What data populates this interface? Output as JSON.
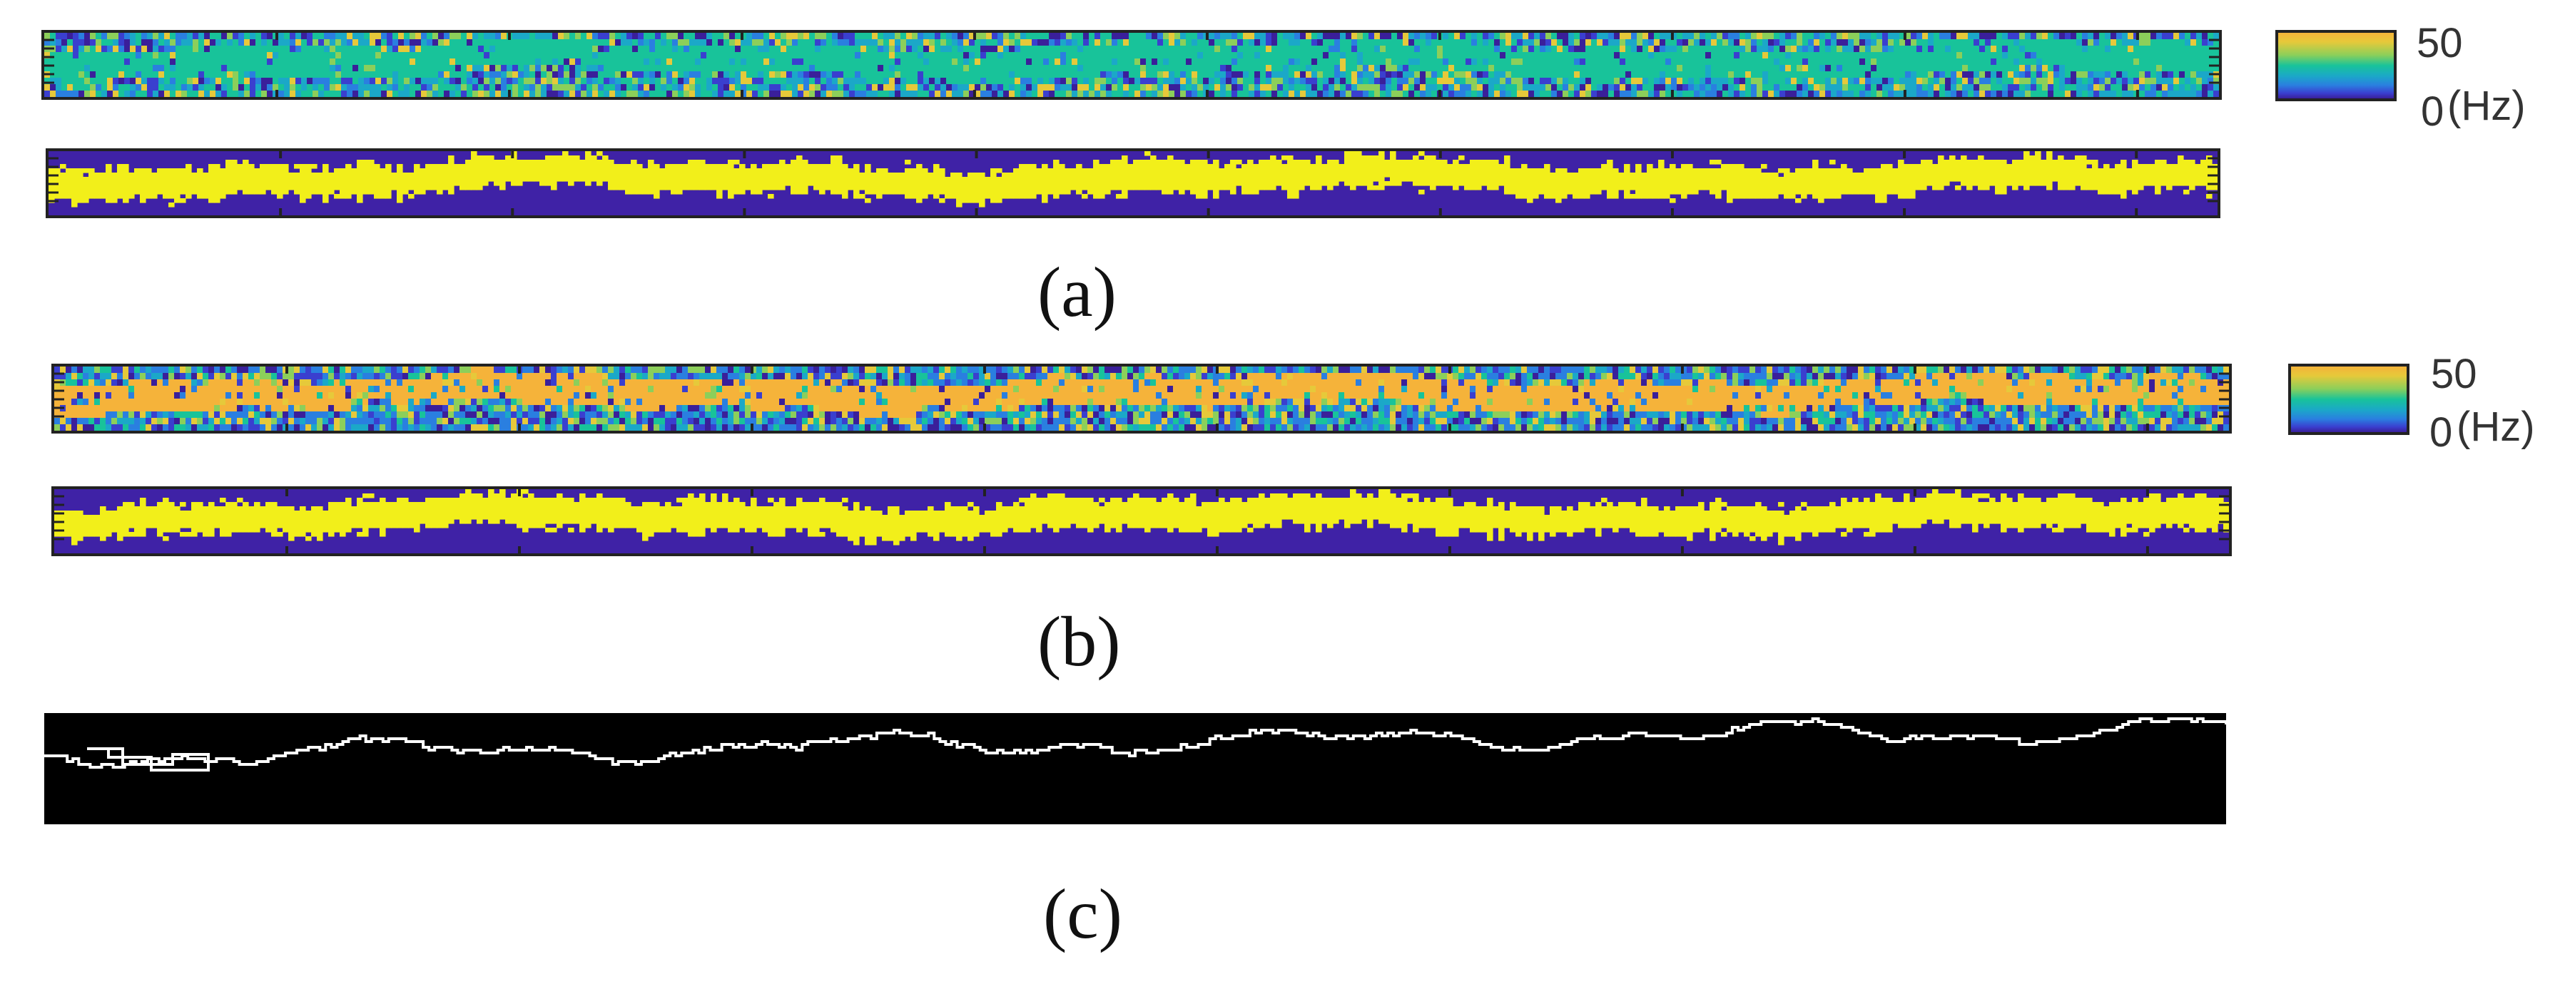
{
  "figure": {
    "panels": [
      {
        "caption": "(a)",
        "colorbar": {
          "max_label": "50",
          "min_label": "0",
          "unit_label": "(Hz)"
        }
      },
      {
        "caption": "(b)",
        "colorbar": {
          "max_label": "50",
          "min_label": "0",
          "unit_label": "(Hz)"
        }
      },
      {
        "caption": "(c)"
      }
    ],
    "colors": {
      "freq_high": "#18c39a",
      "freq_alt_high": "#f5b33a",
      "mask_fg": "#f2ef1a",
      "mask_bg": "#3f22a6",
      "path_bg": "#000000",
      "path_line": "#ffffff"
    }
  }
}
